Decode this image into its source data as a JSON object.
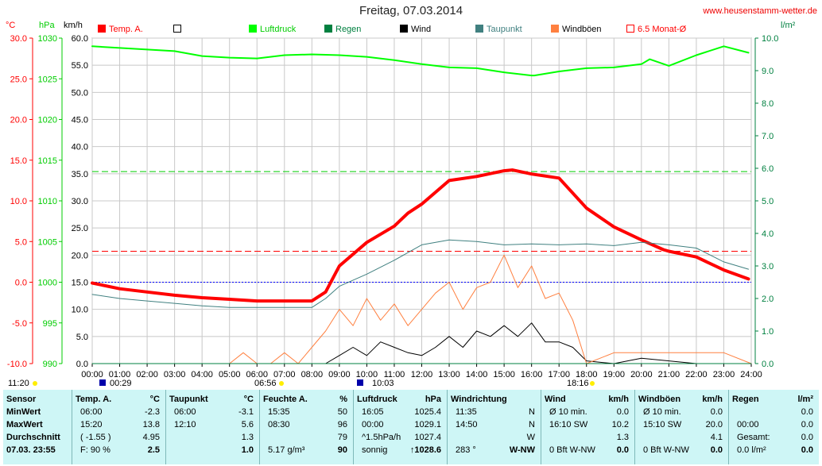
{
  "title": "Freitag, 07.03.2014",
  "website": "www.heusenstamm-wetter.de",
  "units": {
    "temp": "°C",
    "pressure": "hPa",
    "wind": "km/h",
    "rain": "l/m²"
  },
  "legend": [
    {
      "label": "Temp. A.",
      "color": "#ff0000",
      "style": "filled"
    },
    {
      "label": "",
      "color": "#ffffff",
      "style": "outline-black"
    },
    {
      "label": "Luftdruck",
      "color": "#00ff00",
      "style": "filled"
    },
    {
      "label": "Regen",
      "color": "#008040",
      "style": "filled"
    },
    {
      "label": "Wind",
      "color": "#000000",
      "style": "filled"
    },
    {
      "label": "Taupunkt",
      "color": "#408080",
      "style": "filled"
    },
    {
      "label": "Windböen",
      "color": "#ff8040",
      "style": "filled"
    },
    {
      "label": "6.5 Monat-Ø",
      "color": "#ff0000",
      "style": "outline-red"
    }
  ],
  "below_axis": {
    "left_time": "11:20",
    "markers": [
      "00:29",
      "06:56",
      "10:03",
      "18:16"
    ]
  },
  "chart_data": {
    "type": "line",
    "title": "Freitag, 07.03.2014",
    "x_ticks": [
      "00:00",
      "01:00",
      "02:00",
      "03:00",
      "04:00",
      "05:00",
      "06:00",
      "07:00",
      "08:00",
      "09:00",
      "10:00",
      "11:00",
      "12:00",
      "13:00",
      "14:00",
      "15:00",
      "16:00",
      "17:00",
      "18:00",
      "19:00",
      "20:00",
      "21:00",
      "22:00",
      "23:00",
      "24:00"
    ],
    "xlim": [
      0,
      24
    ],
    "axes": {
      "temp": {
        "label": "°C",
        "range": [
          -10,
          30
        ],
        "ticks": [
          "-10.0",
          "-5.0",
          "0.0",
          "5.0",
          "10.0",
          "15.0",
          "20.0",
          "25.0",
          "30.0"
        ]
      },
      "pressure": {
        "label": "hPa",
        "range": [
          990,
          1030
        ],
        "ticks": [
          "990",
          "995",
          "1000",
          "1005",
          "1010",
          "1015",
          "1020",
          "1025",
          "1030"
        ]
      },
      "wind": {
        "label": "km/h",
        "range": [
          0,
          60
        ],
        "ticks": [
          "0.0",
          "5.0",
          "10.0",
          "15.0",
          "20.0",
          "25.0",
          "30.0",
          "35.0",
          "40.0",
          "45.0",
          "50.0",
          "55.0",
          "60.0"
        ]
      },
      "rain": {
        "label": "l/m²",
        "range": [
          0,
          10
        ],
        "ticks": [
          "0.0",
          "1.0",
          "2.0",
          "3.0",
          "4.0",
          "5.0",
          "6.0",
          "7.0",
          "8.0",
          "9.0",
          "10.0"
        ]
      }
    },
    "reference_lines": [
      {
        "axis": "temp",
        "value": 0.0,
        "color": "#0000ff",
        "style": "dotted"
      },
      {
        "axis": "temp",
        "value": 3.8,
        "color": "#ff0000",
        "style": "dashed"
      },
      {
        "axis": "rain",
        "value": 5.9,
        "color": "#00cc00",
        "style": "dashed"
      }
    ],
    "series": [
      {
        "name": "Temp. A.",
        "axis": "temp",
        "color": "#ff0000",
        "width": 4,
        "x": [
          0,
          1,
          2,
          3,
          4,
          5,
          6,
          7,
          8,
          8.5,
          9,
          10,
          11,
          11.5,
          12,
          13,
          14,
          15,
          15.3,
          16,
          17,
          18,
          19,
          20,
          20.8,
          21,
          22,
          23,
          23.9
        ],
        "y": [
          -0.1,
          -0.8,
          -1.2,
          -1.6,
          -1.9,
          -2.1,
          -2.3,
          -2.3,
          -2.3,
          -1.2,
          2.0,
          4.9,
          6.9,
          8.5,
          9.6,
          12.5,
          13.0,
          13.7,
          13.8,
          13.3,
          12.8,
          9.1,
          6.8,
          5.2,
          4.0,
          3.8,
          3.1,
          1.5,
          0.4
        ]
      },
      {
        "name": "Taupunkt",
        "axis": "temp",
        "color": "#408080",
        "width": 1,
        "x": [
          0,
          1,
          2,
          3,
          4,
          5,
          6,
          8,
          8.5,
          9,
          10,
          11,
          12,
          13,
          14,
          15,
          16,
          17,
          18,
          19,
          20,
          21,
          22,
          23,
          23.9
        ],
        "y": [
          -1.5,
          -2.0,
          -2.3,
          -2.6,
          -2.9,
          -3.1,
          -3.1,
          -3.1,
          -2.0,
          -0.5,
          1.0,
          2.7,
          4.6,
          5.2,
          5.0,
          4.6,
          4.7,
          4.6,
          4.7,
          4.5,
          4.9,
          4.6,
          4.2,
          2.5,
          1.6
        ]
      },
      {
        "name": "Luftdruck",
        "axis": "pressure",
        "color": "#00ff00",
        "width": 2,
        "x": [
          0,
          2,
          3,
          4,
          5,
          6,
          7,
          8,
          9,
          10,
          11,
          12,
          13,
          14,
          15,
          16,
          16.1,
          17,
          18,
          19,
          20,
          20.3,
          21,
          22,
          23,
          23.9
        ],
        "y": [
          1029.0,
          1028.6,
          1028.4,
          1027.8,
          1027.6,
          1027.5,
          1027.9,
          1028.0,
          1027.9,
          1027.7,
          1027.3,
          1026.8,
          1026.4,
          1026.3,
          1025.8,
          1025.4,
          1025.4,
          1025.9,
          1026.3,
          1026.4,
          1026.8,
          1027.4,
          1026.6,
          1027.9,
          1029.0,
          1028.2
        ]
      },
      {
        "name": "Wind",
        "axis": "wind",
        "color": "#000000",
        "width": 1,
        "x": [
          0,
          8.5,
          9,
          9.5,
          10,
          10.5,
          11,
          11.5,
          12,
          12.5,
          13,
          13.5,
          14,
          14.5,
          15,
          15.5,
          16,
          16.5,
          17,
          17.5,
          18,
          19,
          20,
          21,
          22,
          23,
          24
        ],
        "y": [
          0,
          0,
          1.5,
          3,
          1.5,
          4,
          3,
          2,
          1.5,
          3,
          5,
          3,
          6,
          5,
          7,
          5,
          7.5,
          4,
          4,
          3,
          0.5,
          0,
          1,
          0.5,
          0,
          0,
          0
        ]
      },
      {
        "name": "Windböen",
        "axis": "wind",
        "color": "#ff8040",
        "width": 1,
        "x": [
          0,
          5,
          5.5,
          6,
          6.5,
          7,
          7.5,
          8,
          8.5,
          9,
          9.5,
          10,
          10.5,
          11,
          11.5,
          12,
          12.5,
          13,
          13.5,
          14,
          14.5,
          15,
          15.5,
          16,
          16.5,
          17,
          17.5,
          18,
          18.5,
          19,
          20,
          21,
          22,
          23,
          24
        ],
        "y": [
          0,
          0,
          2,
          0,
          0,
          2,
          0,
          3,
          6,
          10,
          7,
          12,
          8,
          11,
          7,
          10,
          13,
          15,
          10,
          14,
          15,
          20,
          14,
          18,
          12,
          13,
          8,
          0,
          1,
          2,
          2,
          2,
          2,
          2,
          0
        ]
      },
      {
        "name": "Regen",
        "axis": "rain",
        "color": "#008040",
        "width": 1,
        "x": [
          0,
          24
        ],
        "y": [
          0,
          0
        ]
      }
    ]
  },
  "stats": {
    "columns": [
      {
        "header": [
          "Sensor"
        ],
        "rows": [
          [
            "MinWert"
          ],
          [
            "MaxWert"
          ],
          [
            "Durchschnitt"
          ],
          [
            "07.03. 23:55"
          ]
        ]
      },
      {
        "header": [
          "Temp. A.",
          "°C"
        ],
        "rows": [
          [
            "06:00",
            "-2.3"
          ],
          [
            "15:20",
            "13.8"
          ],
          [
            "( -1.55 )",
            "4.95"
          ],
          [
            "F: 90 %",
            "2.5"
          ]
        ]
      },
      {
        "header": [
          "Taupunkt",
          "°C"
        ],
        "rows": [
          [
            "06:00",
            "-3.1"
          ],
          [
            "12:10",
            "5.6"
          ],
          [
            "",
            "1.3"
          ],
          [
            "",
            "1.0"
          ]
        ]
      },
      {
        "header": [
          "Feuchte A.",
          "%"
        ],
        "rows": [
          [
            "15:35",
            "50"
          ],
          [
            "08:30",
            "96"
          ],
          [
            "",
            "79"
          ],
          [
            "5.17 g/m³",
            "90"
          ]
        ]
      },
      {
        "header": [
          "Luftdruck",
          "hPa"
        ],
        "rows": [
          [
            "16:05",
            "1025.4"
          ],
          [
            "00:00",
            "1029.1"
          ],
          [
            "^1.5hPa/h",
            "1027.4"
          ],
          [
            "sonnig",
            "↑1028.6"
          ]
        ]
      },
      {
        "header": [
          "Windrichtung",
          ""
        ],
        "rows": [
          [
            "11:35",
            "N"
          ],
          [
            "14:50",
            "N"
          ],
          [
            "",
            "W"
          ],
          [
            "283 °",
            "W-NW"
          ]
        ]
      },
      {
        "header": [
          "Wind",
          "km/h"
        ],
        "rows": [
          [
            "Ø 10 min.",
            "0.0"
          ],
          [
            "16:10   SW",
            "10.2"
          ],
          [
            "",
            "1.3"
          ],
          [
            "0 Bft W-NW",
            "0.0"
          ]
        ]
      },
      {
        "header": [
          "Windböen",
          "km/h"
        ],
        "rows": [
          [
            "Ø 10 min.",
            "0.0"
          ],
          [
            "15:10   SW",
            "20.0"
          ],
          [
            "",
            "4.1"
          ],
          [
            "0 Bft W-NW",
            "0.0"
          ]
        ]
      },
      {
        "header": [
          "Regen",
          "l/m²"
        ],
        "rows": [
          [
            "",
            "0.0"
          ],
          [
            "00:00",
            "0.0"
          ],
          [
            "Gesamt:",
            "0.0"
          ],
          [
            "0.0 l/m²",
            "0.0"
          ]
        ]
      }
    ]
  }
}
